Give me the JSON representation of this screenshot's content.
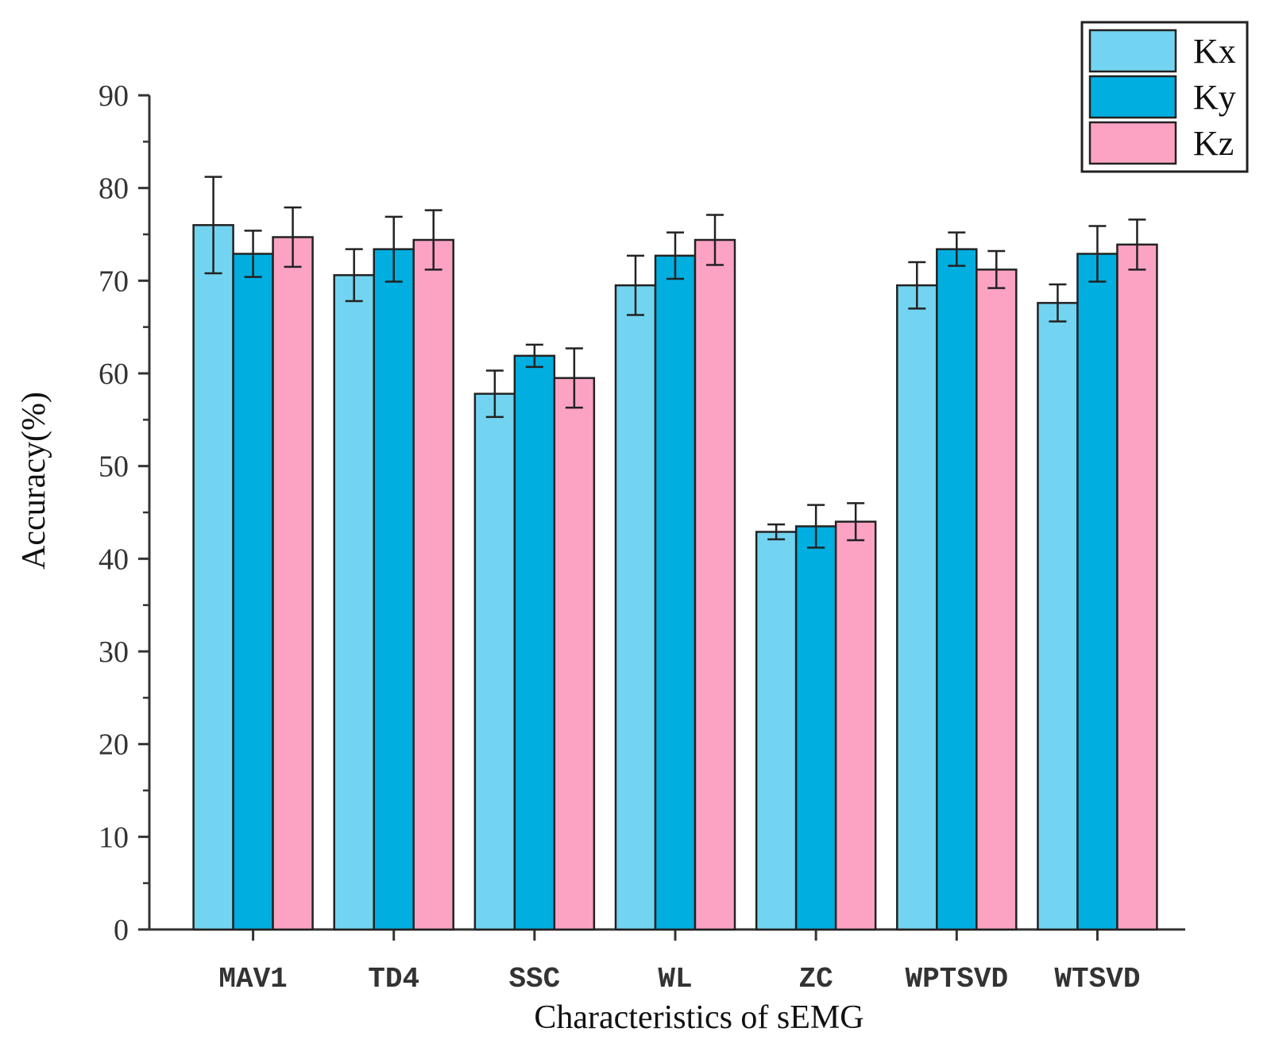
{
  "chart_data": {
    "type": "bar",
    "title": "",
    "xlabel": "Characteristics of sEMG",
    "ylabel": "Accuracy(%)",
    "ylim": [
      0,
      90
    ],
    "yticks": [
      "0",
      "10",
      "20",
      "30",
      "40",
      "50",
      "60",
      "70",
      "80",
      "90"
    ],
    "categories": [
      "MAV1",
      "TD4",
      "SSC",
      "WL",
      "ZC",
      "WPTSVD",
      "WTSVD"
    ],
    "legend_position": "top-right",
    "series": [
      {
        "name": "Kx",
        "color": "#72d4f0",
        "values": [
          76.0,
          70.6,
          57.8,
          69.5,
          42.9,
          69.5,
          67.6
        ],
        "errors": [
          5.2,
          2.8,
          2.5,
          3.2,
          0.8,
          2.5,
          2.0
        ]
      },
      {
        "name": "Ky",
        "color": "#00aee0",
        "values": [
          72.9,
          73.4,
          61.9,
          72.7,
          43.5,
          73.4,
          72.9
        ],
        "errors": [
          2.5,
          3.5,
          1.2,
          2.5,
          2.3,
          1.8,
          3.0
        ]
      },
      {
        "name": "Kz",
        "color": "#fca3c3",
        "values": [
          74.7,
          74.4,
          59.5,
          74.4,
          44.0,
          71.2,
          73.9
        ],
        "errors": [
          3.2,
          3.2,
          3.2,
          2.7,
          2.0,
          2.0,
          2.7
        ]
      }
    ]
  }
}
